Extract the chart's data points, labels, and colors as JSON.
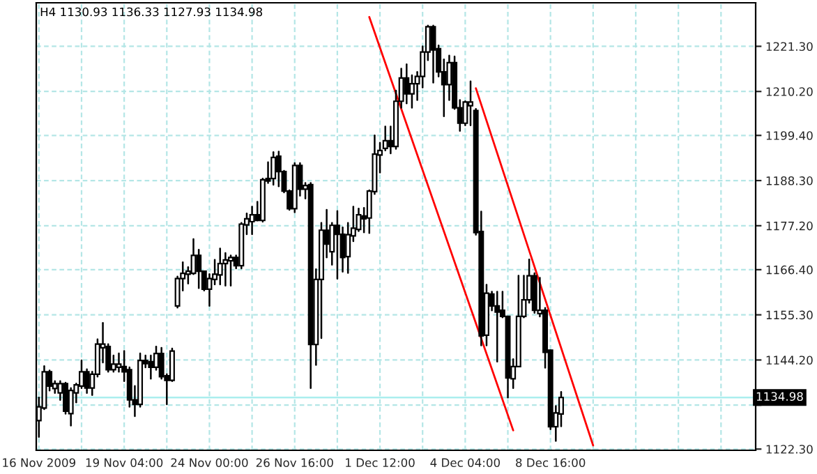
{
  "chart_data": {
    "type": "candlestick",
    "title": "H4 1130.93 1136.33 1127.93 1134.98",
    "categories": [
      "16 Nov 2009",
      null,
      null,
      null,
      null,
      null,
      null,
      null,
      null,
      null,
      null,
      null,
      null,
      null,
      null,
      null,
      "19 Nov 04:00",
      null,
      null,
      null,
      null,
      null,
      null,
      null,
      null,
      null,
      null,
      null,
      null,
      null,
      null,
      null,
      "24 Nov 00:00",
      null,
      null,
      null,
      null,
      null,
      null,
      null,
      null,
      null,
      null,
      null,
      null,
      null,
      null,
      null,
      "26 Nov 16:00",
      null,
      null,
      null,
      null,
      null,
      null,
      null,
      null,
      null,
      null,
      null,
      null,
      null,
      null,
      null,
      "1 Dec 12:00",
      null,
      null,
      null,
      null,
      null,
      null,
      null,
      null,
      null,
      null,
      null,
      null,
      null,
      null,
      null,
      "4 Dec 04:00",
      null,
      null,
      null,
      null,
      null,
      null,
      null,
      null,
      null,
      null,
      null,
      null,
      null,
      null,
      null,
      "8 Dec 16:00",
      null,
      null,
      null,
      null,
      null,
      null,
      null,
      null,
      null,
      null,
      null,
      null,
      null,
      null,
      null,
      null,
      null,
      null,
      null,
      null,
      null,
      null,
      null,
      null,
      null,
      null,
      null,
      null,
      null,
      null,
      null,
      null,
      null,
      null,
      null,
      null,
      null,
      null
    ],
    "color": "#000000",
    "ohlc": [
      [
        1129.3,
        1135.0,
        1125.3,
        1132.7
      ],
      [
        1132.4,
        1142.7,
        1132.1,
        1141.3
      ],
      [
        1141.3,
        1141.6,
        1136.7,
        1137.8
      ],
      [
        1137.2,
        1139.0,
        1136.1,
        1138.4
      ],
      [
        1136.1,
        1139.0,
        1134.4,
        1138.4
      ],
      [
        1138.4,
        1138.6,
        1131.0,
        1131.6
      ],
      [
        1131.0,
        1137.3,
        1128.1,
        1136.7
      ],
      [
        1136.1,
        1138.4,
        1133.8,
        1138.1
      ],
      [
        1137.8,
        1144.1,
        1137.3,
        1141.3
      ],
      [
        1141.3,
        1141.9,
        1136.1,
        1137.3
      ],
      [
        1137.3,
        1141.3,
        1135.6,
        1140.7
      ],
      [
        1140.7,
        1149.3,
        1140.1,
        1148.1
      ],
      [
        1147.2,
        1153.3,
        1143.6,
        1148.1
      ],
      [
        1147.5,
        1148.1,
        1141.3,
        1141.8
      ],
      [
        1141.8,
        1145.3,
        1141.3,
        1143.2
      ],
      [
        1142.4,
        1145.8,
        1141.3,
        1143.2
      ],
      [
        1142.6,
        1146.4,
        1139.0,
        1141.3
      ],
      [
        1141.8,
        1142.4,
        1132.7,
        1134.4
      ],
      [
        1134.4,
        1137.8,
        1130.4,
        1133.3
      ],
      [
        1133.3,
        1145.8,
        1132.7,
        1144.1
      ],
      [
        1144.1,
        1145.3,
        1142.4,
        1143.3
      ],
      [
        1143.8,
        1145.3,
        1139.6,
        1142.4
      ],
      [
        1142.4,
        1147.5,
        1141.8,
        1145.8
      ],
      [
        1145.8,
        1147.2,
        1139.6,
        1140.1
      ],
      [
        1140.3,
        1140.7,
        1133.3,
        1139.2
      ],
      [
        1139.2,
        1147.0,
        1139.0,
        1146.4
      ],
      [
        1157.5,
        1164.7,
        1157.1,
        1164.2
      ],
      [
        1164.2,
        1168.2,
        1161.3,
        1165.5
      ],
      [
        1165.3,
        1167.0,
        1163.0,
        1166.0
      ],
      [
        1165.5,
        1173.9,
        1165.3,
        1169.9
      ],
      [
        1169.9,
        1171.3,
        1161.9,
        1166.0
      ],
      [
        1166.0,
        1166.0,
        1161.3,
        1161.6
      ],
      [
        1161.6,
        1165.3,
        1157.5,
        1164.2
      ],
      [
        1164.0,
        1168.8,
        1162.8,
        1165.3
      ],
      [
        1165.1,
        1171.6,
        1162.8,
        1167.9
      ],
      [
        1167.9,
        1170.5,
        1162.5,
        1168.8
      ],
      [
        1168.6,
        1169.9,
        1162.5,
        1169.4
      ],
      [
        1169.4,
        1169.9,
        1166.7,
        1167.4
      ],
      [
        1167.4,
        1177.9,
        1166.7,
        1177.6
      ],
      [
        1177.4,
        1180.2,
        1175.1,
        1178.9
      ],
      [
        1178.2,
        1181.9,
        1175.1,
        1179.9
      ],
      [
        1179.9,
        1183.1,
        1178.5,
        1178.5
      ],
      [
        1178.5,
        1188.8,
        1178.2,
        1188.5
      ],
      [
        1188.8,
        1192.8,
        1187.7,
        1188.2
      ],
      [
        1188.8,
        1195.3,
        1187.3,
        1194.0
      ],
      [
        1194.3,
        1195.4,
        1186.9,
        1190.5
      ],
      [
        1190.5,
        1190.7,
        1185.4,
        1185.7
      ],
      [
        1185.7,
        1185.9,
        1181.1,
        1181.4
      ],
      [
        1181.4,
        1192.6,
        1180.5,
        1192.0
      ],
      [
        1192.0,
        1192.6,
        1184.6,
        1186.2
      ],
      [
        1186.2,
        1187.7,
        1183.9,
        1187.1
      ],
      [
        1187.3,
        1187.7,
        1137.3,
        1148.0
      ],
      [
        1148.0,
        1166.5,
        1143.0,
        1164.0
      ],
      [
        1164.0,
        1177.9,
        1149.6,
        1176.1
      ],
      [
        1176.1,
        1181.1,
        1169.4,
        1172.7
      ],
      [
        1170.8,
        1177.9,
        1167.6,
        1177.3
      ],
      [
        1177.3,
        1180.8,
        1164.2,
        1175.1
      ],
      [
        1175.1,
        1176.8,
        1165.9,
        1169.4
      ],
      [
        1169.6,
        1177.9,
        1165.6,
        1175.0
      ],
      [
        1174.7,
        1181.9,
        1173.4,
        1176.6
      ],
      [
        1176.3,
        1181.4,
        1175.9,
        1179.9
      ],
      [
        1179.6,
        1181.6,
        1175.6,
        1178.9
      ],
      [
        1179.1,
        1185.9,
        1175.4,
        1185.7
      ],
      [
        1185.6,
        1199.4,
        1185.0,
        1194.8
      ],
      [
        1194.6,
        1197.6,
        1190.3,
        1195.7
      ],
      [
        1196.2,
        1201.6,
        1195.7,
        1198.1
      ],
      [
        1198.1,
        1201.6,
        1195.0,
        1196.7
      ],
      [
        1196.7,
        1210.4,
        1196.1,
        1207.8
      ],
      [
        1207.8,
        1215.8,
        1206.2,
        1213.5
      ],
      [
        1213.5,
        1216.9,
        1207.3,
        1209.6
      ],
      [
        1209.6,
        1214.2,
        1206.2,
        1212.1
      ],
      [
        1212.1,
        1215.0,
        1208.1,
        1213.9
      ],
      [
        1213.9,
        1221.3,
        1211.2,
        1219.9
      ],
      [
        1219.9,
        1226.4,
        1217.9,
        1226.1
      ],
      [
        1226.1,
        1226.4,
        1212.4,
        1220.4
      ],
      [
        1220.7,
        1221.5,
        1213.9,
        1215.0
      ],
      [
        1215.0,
        1218.1,
        1204.1,
        1211.9
      ],
      [
        1211.9,
        1219.0,
        1208.1,
        1217.3
      ],
      [
        1217.3,
        1218.8,
        1205.9,
        1206.2
      ],
      [
        1206.2,
        1208.1,
        1200.5,
        1202.4
      ],
      [
        1202.4,
        1207.8,
        1201.9,
        1207.6
      ],
      [
        1206.7,
        1212.7,
        1201.9,
        1207.6
      ],
      [
        1205.5,
        1205.9,
        1175.0,
        1175.5
      ],
      [
        1175.8,
        1180.7,
        1147.8,
        1150.1
      ],
      [
        1150.3,
        1162.7,
        1147.8,
        1160.6
      ],
      [
        1160.4,
        1161.0,
        1156.4,
        1157.5
      ],
      [
        1157.5,
        1161.0,
        1143.8,
        1156.0
      ],
      [
        1156.4,
        1161.0,
        1154.7,
        1154.9
      ],
      [
        1154.9,
        1154.9,
        1135.0,
        1139.8
      ],
      [
        1139.6,
        1144.4,
        1137.3,
        1142.6
      ],
      [
        1142.6,
        1164.9,
        1142.6,
        1154.9
      ],
      [
        1154.9,
        1164.9,
        1154.7,
        1159.0
      ],
      [
        1159.0,
        1168.9,
        1158.3,
        1164.9
      ],
      [
        1164.9,
        1165.5,
        1155.8,
        1156.4
      ],
      [
        1155.6,
        1164.4,
        1154.9,
        1156.4
      ],
      [
        1156.4,
        1157.0,
        1142.3,
        1146.1
      ],
      [
        1146.6,
        1146.6,
        1127.2,
        1127.8
      ],
      [
        1127.8,
        1132.9,
        1124.3,
        1131.2
      ],
      [
        1130.93,
        1136.33,
        1127.93,
        1134.98
      ],
      null,
      null,
      null,
      null,
      null,
      null,
      null,
      null,
      null,
      null,
      null,
      null,
      null,
      null,
      null,
      null,
      null,
      null,
      null,
      null,
      null,
      null,
      null,
      null,
      null,
      null,
      null,
      null,
      null,
      null,
      null,
      null,
      null,
      null,
      null,
      null
    ],
    "series": [
      {
        "type": "line",
        "color": "#ff0000",
        "values": [
          null,
          null,
          null,
          null,
          null,
          null,
          null,
          null,
          null,
          null,
          null,
          null,
          null,
          null,
          null,
          null,
          null,
          null,
          null,
          null,
          null,
          null,
          null,
          null,
          null,
          null,
          null,
          null,
          null,
          null,
          null,
          null,
          null,
          null,
          null,
          null,
          null,
          null,
          null,
          null,
          null,
          null,
          null,
          null,
          null,
          null,
          null,
          null,
          null,
          null,
          null,
          null,
          null,
          null,
          null,
          null,
          null,
          null,
          null,
          null,
          null,
          null,
          1228.5,
          null,
          null,
          null,
          null,
          null,
          null,
          null,
          null,
          null,
          null,
          null,
          null,
          null,
          null,
          null,
          null,
          null,
          null,
          null,
          null,
          null,
          null,
          null,
          null,
          null,
          null,
          1126.9,
          null,
          null,
          null,
          null,
          null,
          null,
          null,
          null,
          null,
          null,
          null,
          null,
          null,
          null,
          null,
          null,
          null,
          null,
          null,
          null,
          null,
          null,
          null,
          null,
          null,
          null,
          null,
          null,
          null,
          null,
          null,
          null,
          null,
          null,
          null,
          null,
          null,
          null,
          null,
          null,
          null,
          null,
          null,
          null,
          null
        ]
      },
      {
        "type": "line",
        "color": "#ff0000",
        "values": [
          null,
          null,
          null,
          null,
          null,
          null,
          null,
          null,
          null,
          null,
          null,
          null,
          null,
          null,
          null,
          null,
          null,
          null,
          null,
          null,
          null,
          null,
          null,
          null,
          null,
          null,
          null,
          null,
          null,
          null,
          null,
          null,
          null,
          null,
          null,
          null,
          null,
          null,
          null,
          null,
          null,
          null,
          null,
          null,
          null,
          null,
          null,
          null,
          null,
          null,
          null,
          null,
          null,
          null,
          null,
          null,
          null,
          null,
          null,
          null,
          null,
          null,
          null,
          null,
          null,
          null,
          null,
          null,
          null,
          null,
          null,
          null,
          null,
          null,
          null,
          null,
          null,
          null,
          null,
          null,
          null,
          null,
          1211.0,
          null,
          null,
          null,
          null,
          null,
          null,
          null,
          null,
          null,
          null,
          null,
          null,
          null,
          null,
          null,
          null,
          null,
          null,
          null,
          null,
          null,
          1123.2,
          null,
          null,
          null,
          null,
          null,
          null,
          null,
          null,
          null,
          null,
          null,
          null,
          null,
          null,
          null,
          null,
          null,
          null,
          null,
          null,
          null,
          null,
          null,
          null,
          null,
          null,
          null,
          null,
          null,
          null
        ]
      }
    ],
    "ylim": [
      1122.0,
      1232.0
    ],
    "yticks": [
      {
        "value": 1122.3,
        "label": "1122.30"
      },
      {
        "value": 1133.1,
        "label": null
      },
      {
        "value": 1144.2,
        "label": "1144.20"
      },
      {
        "value": 1155.3,
        "label": "1155.30"
      },
      {
        "value": 1166.4,
        "label": "1166.40"
      },
      {
        "value": 1177.2,
        "label": "1177.20"
      },
      {
        "value": 1188.3,
        "label": "1188.30"
      },
      {
        "value": 1199.4,
        "label": "1199.40"
      },
      {
        "value": 1210.2,
        "label": "1210.20"
      },
      {
        "value": 1221.3,
        "label": "1221.30"
      }
    ],
    "ref_lines": [
      {
        "axis": "y",
        "value": 1134.98,
        "label": "1134.98",
        "color": "#aaeeee"
      }
    ],
    "grid": true
  }
}
